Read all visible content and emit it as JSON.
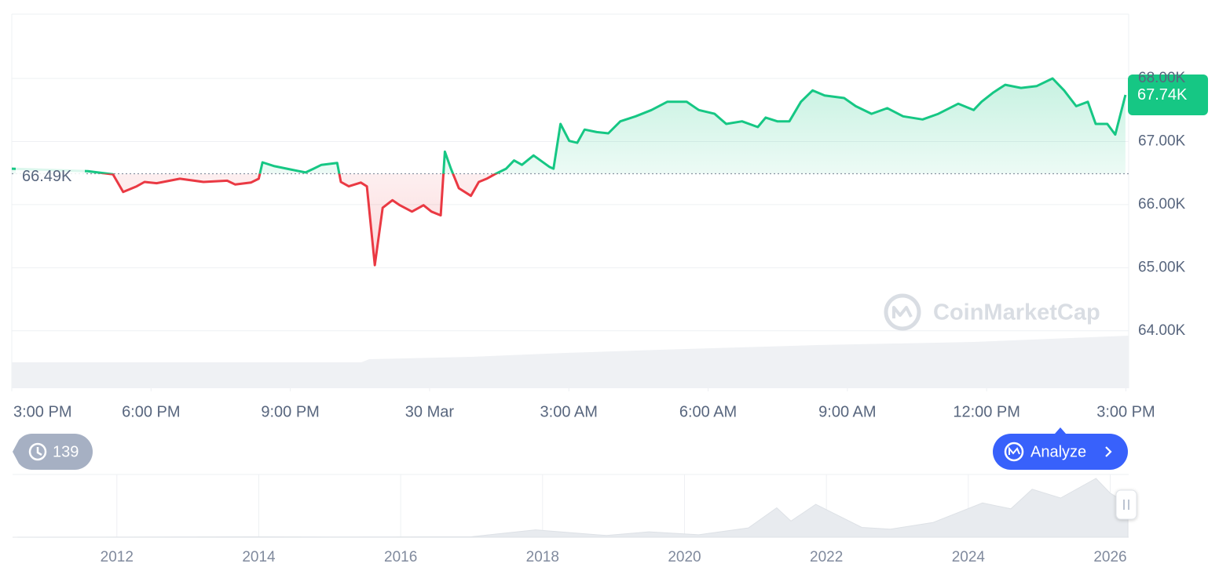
{
  "chart_data": [
    {
      "type": "line",
      "x": [
        0,
        1.64,
        2.18,
        2.4,
        2.69,
        2.86,
        3.12,
        3.62,
        4.13,
        4.64,
        4.81,
        5.15,
        5.32,
        5.4,
        5.66,
        5.99,
        6.33,
        6.5,
        6.67,
        7.01,
        7.09,
        7.26,
        7.52,
        7.65,
        7.82,
        7.99,
        8.2,
        8.36,
        8.62,
        8.87,
        9.04,
        9.24,
        9.33,
        9.46,
        9.63,
        9.89,
        10.06,
        10.23,
        10.4,
        10.65,
        10.82,
        10.99,
        11.24,
        11.58,
        11.67,
        11.82,
        12.01,
        12.18,
        12.34,
        12.6,
        12.85,
        13.11,
        13.44,
        13.78,
        14.12,
        14.54,
        14.8,
        15.14,
        15.39,
        15.73,
        16.07,
        16.24,
        16.49,
        16.75,
        17.0,
        17.25,
        17.51,
        17.93,
        18.18,
        18.52,
        18.86,
        19.2,
        19.62,
        19.96,
        20.39,
        20.72,
        20.89,
        21.15,
        21.4,
        21.74,
        22.08,
        22.42,
        22.67,
        22.93,
        23.18,
        23.35,
        23.6,
        23.77,
        23.99
      ],
      "values": [
        66570,
        66530,
        66480,
        66200,
        66290,
        66360,
        66340,
        66410,
        66360,
        66380,
        66320,
        66350,
        66410,
        66670,
        66610,
        66560,
        66510,
        66570,
        66630,
        66660,
        66360,
        66290,
        66350,
        66290,
        65040,
        65950,
        66070,
        65990,
        65890,
        65990,
        65890,
        65830,
        66840,
        66570,
        66260,
        66140,
        66360,
        66410,
        66480,
        66570,
        66700,
        66630,
        66780,
        66600,
        66570,
        67280,
        67010,
        66980,
        67190,
        67150,
        67130,
        67320,
        67400,
        67500,
        67630,
        67630,
        67500,
        67440,
        67280,
        67320,
        67230,
        67380,
        67320,
        67320,
        67630,
        67810,
        67730,
        67690,
        67560,
        67440,
        67530,
        67400,
        67350,
        67440,
        67600,
        67500,
        67630,
        67780,
        67900,
        67850,
        67880,
        68000,
        67810,
        67560,
        67630,
        67280,
        67280,
        67110,
        67740
      ],
      "color_up": "#16c784",
      "color_down": "#ea3943",
      "baseline": {
        "value": 66490,
        "label": "66.49K"
      },
      "current_price": {
        "value": 67740,
        "label": "67.74K"
      },
      "xlim": [
        0,
        24.06
      ],
      "xticks": [
        {
          "value": 0,
          "label": "3:00 PM"
        },
        {
          "value": 3,
          "label": "6:00 PM"
        },
        {
          "value": 6,
          "label": "9:00 PM"
        },
        {
          "value": 9,
          "label": "30 Mar"
        },
        {
          "value": 12,
          "label": "3:00 AM"
        },
        {
          "value": 15,
          "label": "6:00 AM"
        },
        {
          "value": 18,
          "label": "9:00 AM"
        },
        {
          "value": 21,
          "label": "12:00 PM"
        },
        {
          "value": 24,
          "label": "3:00 PM"
        }
      ],
      "ylim": [
        63090,
        69020
      ],
      "yticks": [
        {
          "value": 64000,
          "label": "64.00K"
        },
        {
          "value": 65000,
          "label": "65.00K"
        },
        {
          "value": 66000,
          "label": "66.00K"
        },
        {
          "value": 67000,
          "label": "67.00K"
        },
        {
          "value": 68000,
          "label": "68.00K"
        }
      ],
      "grid": true
    },
    {
      "type": "area",
      "x": [
        2010.6,
        2013.9,
        2015.0,
        2017.0,
        2017.9,
        2018.9,
        2019.5,
        2020.2,
        2020.9,
        2021.3,
        2021.5,
        2021.85,
        2022.5,
        2022.9,
        2023.5,
        2024.2,
        2024.6,
        2024.9,
        2025.3,
        2025.8,
        2026.0,
        2026.25
      ],
      "values": [
        0,
        800,
        300,
        1000,
        15000,
        3500,
        11000,
        5000,
        19000,
        60000,
        33000,
        67000,
        20000,
        16500,
        30000,
        70000,
        58000,
        98000,
        80000,
        120000,
        90000,
        67740
      ],
      "color": "#e8ebef",
      "xlim": [
        2010.53,
        2026.26
      ],
      "xticks": [
        2012,
        2014,
        2016,
        2018,
        2020,
        2022,
        2024,
        2026
      ],
      "grid": true
    }
  ],
  "ui": {
    "history_count": "139",
    "analyze_button": "Analyze",
    "watermark": "CoinMarketCap"
  }
}
